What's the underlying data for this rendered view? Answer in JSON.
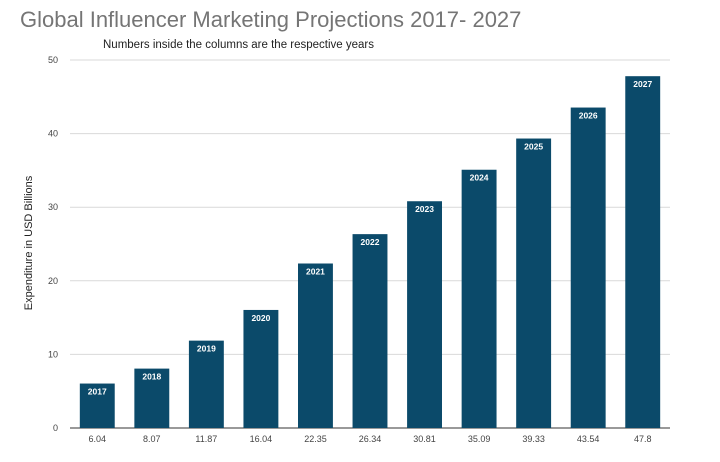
{
  "chart_data": {
    "type": "bar",
    "title": "Global Influencer Marketing Projections 2017- 2027",
    "subtitle": "Numbers inside the columns are the respective years",
    "xlabel": "",
    "ylabel": "Expenditure in USD Billions",
    "ylim": [
      0,
      50
    ],
    "yticks": [
      0,
      10,
      20,
      30,
      40,
      50
    ],
    "grid": true,
    "legend": "none",
    "bar_color": "#0b4a6a",
    "categories": [
      "6.04",
      "8.07",
      "11.87",
      "16.04",
      "22.35",
      "26.34",
      "30.81",
      "35.09",
      "39.33",
      "43.54",
      "47.8"
    ],
    "values": [
      6.04,
      8.07,
      11.87,
      16.04,
      22.35,
      26.34,
      30.81,
      35.09,
      39.33,
      43.54,
      47.8
    ],
    "bar_labels": [
      "2017",
      "2018",
      "2019",
      "2020",
      "2021",
      "2022",
      "2023",
      "2024",
      "2025",
      "2026",
      "2027"
    ]
  }
}
